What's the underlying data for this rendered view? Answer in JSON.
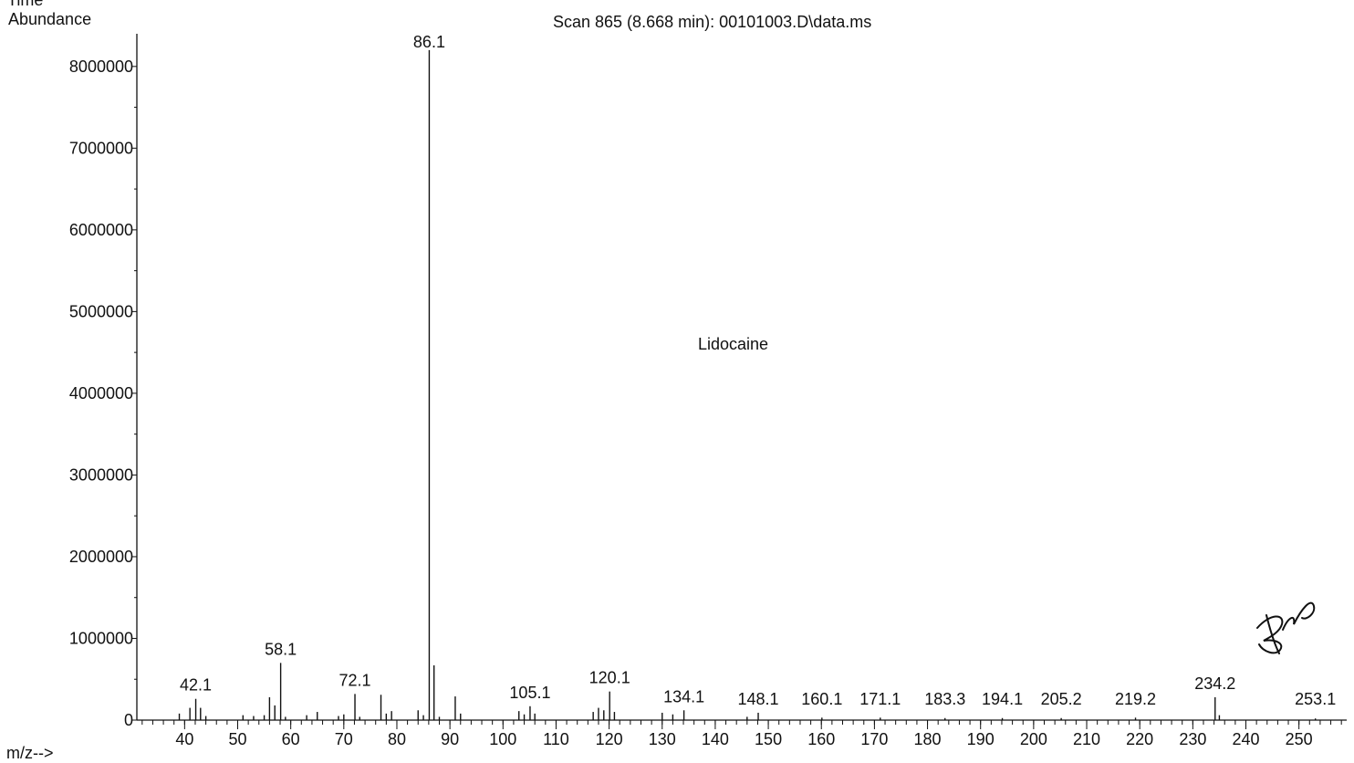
{
  "cut_label": "Time",
  "chart_data": {
    "type": "bar",
    "title": "Scan 865 (8.668 min): 00101003.D\\data.ms",
    "ylabel": "Abundance",
    "xlabel": "m/z-->",
    "annotation": "Lidocaine",
    "xlim": [
      31,
      259
    ],
    "ylim": [
      0,
      8400000
    ],
    "x_ticks": [
      40,
      50,
      60,
      70,
      80,
      90,
      100,
      110,
      120,
      130,
      140,
      150,
      160,
      170,
      180,
      190,
      200,
      210,
      220,
      230,
      240,
      250
    ],
    "y_ticks": [
      0,
      1000000,
      2000000,
      3000000,
      4000000,
      5000000,
      6000000,
      7000000,
      8000000
    ],
    "peaks": [
      [
        39,
        80000
      ],
      [
        41,
        150000
      ],
      [
        42.1,
        260000
      ],
      [
        43,
        150000
      ],
      [
        44,
        50000
      ],
      [
        51,
        60000
      ],
      [
        53,
        50000
      ],
      [
        55,
        60000
      ],
      [
        56,
        280000
      ],
      [
        57,
        180000
      ],
      [
        58.1,
        700000
      ],
      [
        59,
        40000
      ],
      [
        63,
        60000
      ],
      [
        65,
        100000
      ],
      [
        69,
        50000
      ],
      [
        70,
        70000
      ],
      [
        72.1,
        320000
      ],
      [
        73,
        40000
      ],
      [
        77,
        310000
      ],
      [
        78,
        80000
      ],
      [
        79,
        110000
      ],
      [
        84,
        120000
      ],
      [
        85,
        60000
      ],
      [
        86.1,
        8200000
      ],
      [
        87,
        670000
      ],
      [
        88,
        40000
      ],
      [
        91,
        290000
      ],
      [
        92,
        80000
      ],
      [
        103,
        110000
      ],
      [
        104,
        70000
      ],
      [
        105.1,
        170000
      ],
      [
        106,
        80000
      ],
      [
        117,
        100000
      ],
      [
        118,
        150000
      ],
      [
        119,
        120000
      ],
      [
        120.1,
        350000
      ],
      [
        121,
        100000
      ],
      [
        130,
        90000
      ],
      [
        132,
        70000
      ],
      [
        134.1,
        120000
      ],
      [
        146,
        40000
      ],
      [
        148.1,
        90000
      ],
      [
        160.1,
        30000
      ],
      [
        171.1,
        30000
      ],
      [
        183.3,
        25000
      ],
      [
        194.1,
        25000
      ],
      [
        205.2,
        25000
      ],
      [
        219.2,
        30000
      ],
      [
        234.2,
        280000
      ],
      [
        235,
        60000
      ],
      [
        253.1,
        20000
      ]
    ],
    "labels": [
      {
        "x": 42.1,
        "text": "42.1"
      },
      {
        "x": 58.1,
        "text": "58.1"
      },
      {
        "x": 72.1,
        "text": "72.1"
      },
      {
        "x": 86.1,
        "text": "86.1"
      },
      {
        "x": 105.1,
        "text": "105.1"
      },
      {
        "x": 120.1,
        "text": "120.1"
      },
      {
        "x": 134.1,
        "text": "134.1"
      },
      {
        "x": 148.1,
        "text": "148.1"
      },
      {
        "x": 160.1,
        "text": "160.1"
      },
      {
        "x": 171.1,
        "text": "171.1"
      },
      {
        "x": 183.3,
        "text": "183.3"
      },
      {
        "x": 194.1,
        "text": "194.1"
      },
      {
        "x": 205.2,
        "text": "205.2"
      },
      {
        "x": 219.2,
        "text": "219.2"
      },
      {
        "x": 234.2,
        "text": "234.2"
      },
      {
        "x": 253.1,
        "text": "253.1"
      }
    ],
    "grid": false
  },
  "colors": {
    "ink": "#111111",
    "background": "#ffffff"
  }
}
